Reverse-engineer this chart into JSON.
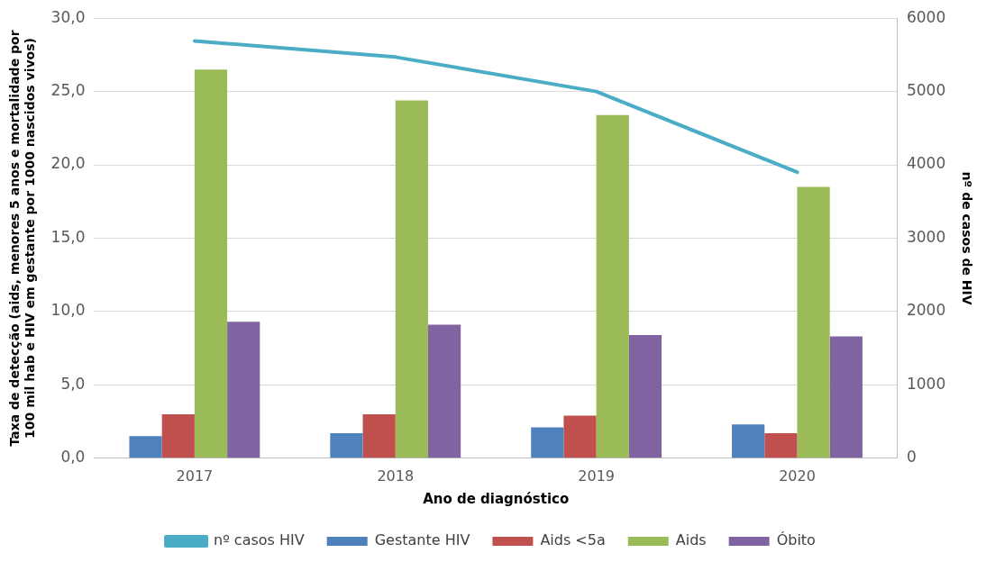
{
  "chart_data": {
    "type": "bar",
    "categories": [
      "2017",
      "2018",
      "2019",
      "2020"
    ],
    "series": [
      {
        "name": "Gestante HIV",
        "color": "#4f81bd",
        "values": [
          1.5,
          1.7,
          2.1,
          2.3
        ]
      },
      {
        "name": "Aids <5a",
        "color": "#c0504d",
        "values": [
          3.0,
          3.0,
          2.9,
          1.7
        ]
      },
      {
        "name": "Aids",
        "color": "#9bbb59",
        "values": [
          26.5,
          24.4,
          23.4,
          18.5
        ]
      },
      {
        "name": "Óbito",
        "color": "#8064a2",
        "values": [
          9.3,
          9.1,
          8.4,
          8.3
        ]
      },
      {
        "name": "nº casos HIV",
        "color": "#4bacc6",
        "type": "line",
        "axis": "y2",
        "marker": "none",
        "values": [
          5690,
          5470,
          5000,
          3900
        ]
      }
    ],
    "xlabel": "Ano de diagnóstico",
    "ylabel": "Taxa de detecção (aids, menores 5 anos e mortalidade por 100 mil hab e HIV em gestante por 1000 nascidos vivos)",
    "y2label": "nº de casos de HIV",
    "ylim": [
      0,
      30
    ],
    "yticks": [
      {
        "value": 0,
        "label": "0,0"
      },
      {
        "value": 5,
        "label": "5,0"
      },
      {
        "value": 10,
        "label": "10,0"
      },
      {
        "value": 15,
        "label": "15,0"
      },
      {
        "value": 20,
        "label": "20,0"
      },
      {
        "value": 25,
        "label": "25,0"
      },
      {
        "value": 30,
        "label": "30,0"
      }
    ],
    "y2lim": [
      0,
      6000
    ],
    "y2ticks": [
      0,
      1000,
      2000,
      3000,
      4000,
      5000,
      6000
    ],
    "grid": "y",
    "legend": "bottom"
  }
}
